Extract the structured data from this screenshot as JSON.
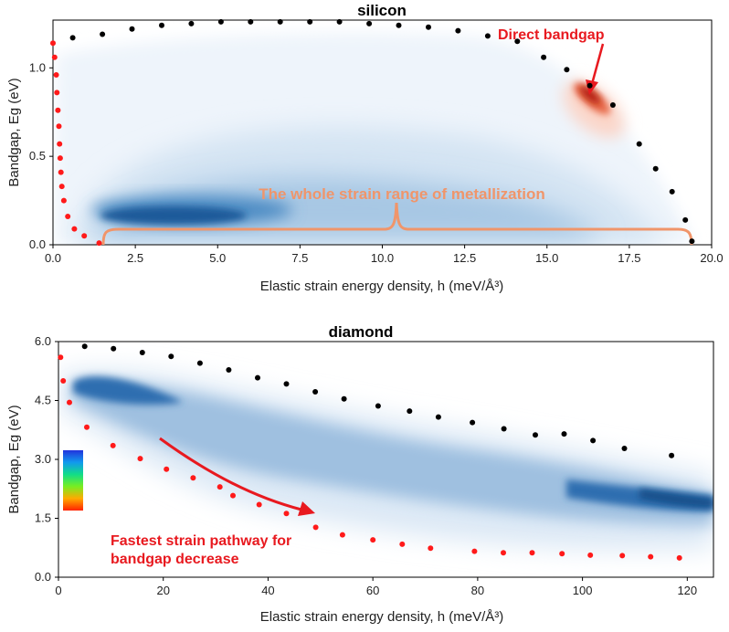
{
  "chart_data": [
    {
      "id": "silicon",
      "type": "scatter",
      "title": "silicon",
      "xlabel": "Elastic strain energy density, h (meV/Å³)",
      "ylabel": "Bandgap, Eg (eV)",
      "xlim": [
        0,
        20
      ],
      "ylim": [
        0,
        1.27
      ],
      "x_ticks": [
        "0.0",
        "2.5",
        "5.0",
        "7.5",
        "10.0",
        "12.5",
        "15.0",
        "17.5",
        "20.0"
      ],
      "y_ticks": [
        "0.0",
        "0.5",
        "1.0"
      ],
      "grid": false,
      "series": [
        {
          "color": "#000000",
          "points": [
            [
              0.6,
              1.17
            ],
            [
              1.5,
              1.19
            ],
            [
              2.4,
              1.22
            ],
            [
              3.3,
              1.24
            ],
            [
              4.2,
              1.25
            ],
            [
              5.1,
              1.26
            ],
            [
              6.0,
              1.26
            ],
            [
              6.9,
              1.26
            ],
            [
              7.8,
              1.26
            ],
            [
              8.7,
              1.26
            ],
            [
              9.6,
              1.25
            ],
            [
              10.5,
              1.24
            ],
            [
              11.4,
              1.23
            ],
            [
              12.3,
              1.21
            ],
            [
              13.2,
              1.18
            ],
            [
              14.1,
              1.15
            ],
            [
              14.9,
              1.06
            ],
            [
              15.6,
              0.99
            ],
            [
              16.3,
              0.9
            ],
            [
              17.0,
              0.79
            ],
            [
              17.8,
              0.57
            ],
            [
              18.3,
              0.43
            ],
            [
              18.8,
              0.3
            ],
            [
              19.2,
              0.14
            ],
            [
              19.4,
              0.02
            ]
          ]
        },
        {
          "color": "#ff1a1a",
          "points": [
            [
              0.0,
              1.14
            ],
            [
              0.05,
              1.06
            ],
            [
              0.1,
              0.96
            ],
            [
              0.12,
              0.86
            ],
            [
              0.15,
              0.76
            ],
            [
              0.18,
              0.67
            ],
            [
              0.2,
              0.57
            ],
            [
              0.22,
              0.49
            ],
            [
              0.24,
              0.41
            ],
            [
              0.27,
              0.33
            ],
            [
              0.33,
              0.25
            ],
            [
              0.45,
              0.16
            ],
            [
              0.65,
              0.09
            ],
            [
              0.95,
              0.05
            ],
            [
              1.4,
              0.01
            ]
          ]
        }
      ],
      "annotations": [
        {
          "text": "Direct bandgap",
          "color": "#e8191f"
        },
        {
          "text": "The whole strain range of metallization",
          "color": "#f0956a"
        }
      ]
    },
    {
      "id": "diamond",
      "type": "scatter",
      "title": "diamond",
      "xlabel": "Elastic strain energy density, h (meV/Å³)",
      "ylabel": "Bandgap, Eg (eV)",
      "xlim": [
        0,
        125
      ],
      "ylim": [
        0,
        6.0
      ],
      "x_ticks": [
        "0",
        "20",
        "40",
        "60",
        "80",
        "100",
        "120"
      ],
      "y_ticks": [
        "0.0",
        "1.5",
        "3.0",
        "4.5",
        "6.0"
      ],
      "grid": false,
      "series": [
        {
          "color": "#000000",
          "points": [
            [
              5,
              5.88
            ],
            [
              10.5,
              5.82
            ],
            [
              16,
              5.72
            ],
            [
              21.5,
              5.62
            ],
            [
              27,
              5.45
            ],
            [
              32.5,
              5.28
            ],
            [
              38,
              5.08
            ],
            [
              43.5,
              4.92
            ],
            [
              49,
              4.72
            ],
            [
              54.5,
              4.54
            ],
            [
              61,
              4.36
            ],
            [
              67,
              4.23
            ],
            [
              72.5,
              4.08
            ],
            [
              79,
              3.94
            ],
            [
              85,
              3.78
            ],
            [
              91,
              3.62
            ],
            [
              96.5,
              3.65
            ],
            [
              102,
              3.48
            ],
            [
              108,
              3.28
            ],
            [
              117,
              3.1
            ]
          ]
        },
        {
          "color": "#ff1a1a",
          "points": [
            [
              0.4,
              5.6
            ],
            [
              0.9,
              5.0
            ],
            [
              2.1,
              4.45
            ],
            [
              5.4,
              3.82
            ],
            [
              10.4,
              3.35
            ],
            [
              15.6,
              3.02
            ],
            [
              20.6,
              2.75
            ],
            [
              25.7,
              2.53
            ],
            [
              30.8,
              2.3
            ],
            [
              33.3,
              2.08
            ],
            [
              38.3,
              1.85
            ],
            [
              43.5,
              1.62
            ],
            [
              49.1,
              1.27
            ],
            [
              54.2,
              1.08
            ],
            [
              60,
              0.95
            ],
            [
              65.6,
              0.84
            ],
            [
              71,
              0.74
            ],
            [
              79.4,
              0.66
            ],
            [
              84.9,
              0.62
            ],
            [
              90.4,
              0.62
            ],
            [
              96.1,
              0.6
            ],
            [
              101.5,
              0.56
            ],
            [
              107.6,
              0.55
            ],
            [
              113,
              0.52
            ],
            [
              118.5,
              0.49
            ]
          ]
        }
      ],
      "annotations": [
        {
          "text": "Fastest strain pathway for",
          "color": "#e8191f"
        },
        {
          "text": "bandgap decrease",
          "color": "#e8191f"
        }
      ]
    }
  ]
}
